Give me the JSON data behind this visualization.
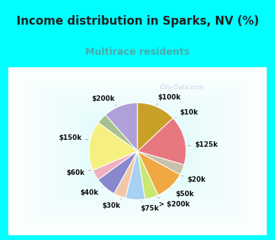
{
  "title": "Income distribution in Sparks, NV (%)",
  "subtitle": "Multirace residents",
  "title_color": "#222222",
  "subtitle_color": "#4aabab",
  "bg_cyan": "#00ffff",
  "bg_chart": "#e0f5f0",
  "watermark": "City-Data.com",
  "labels": [
    "$100k",
    "$10k",
    "$125k",
    "$20k",
    "$50k",
    "> $200k",
    "$75k",
    "$30k",
    "$40k",
    "$60k",
    "$150k",
    "$200k"
  ],
  "values": [
    11.5,
    3.5,
    16.5,
    3.5,
    7.0,
    4.0,
    6.5,
    4.5,
    10.0,
    3.5,
    16.5,
    13.0
  ],
  "colors": [
    "#b0a0d8",
    "#a8c090",
    "#f5f080",
    "#f0b0c0",
    "#8888cc",
    "#f0c8a8",
    "#a8d0f0",
    "#c8e870",
    "#f0a840",
    "#c8c0a8",
    "#e87880",
    "#c8a028"
  ],
  "startangle": 90,
  "title_fontsize": 12,
  "subtitle_fontsize": 10,
  "label_fontsize": 7
}
